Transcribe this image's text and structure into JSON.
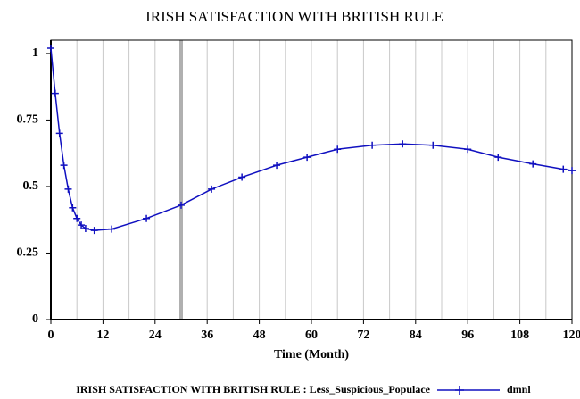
{
  "chart_data": {
    "type": "line",
    "title": "IRISH SATISFACTION WITH BRITISH RULE",
    "x_label": "Time (Month)",
    "x": [
      0,
      1,
      2,
      3,
      4,
      5,
      6,
      7,
      8,
      10,
      14,
      22,
      30,
      37,
      44,
      52,
      59,
      66,
      74,
      81,
      88,
      96,
      103,
      111,
      118,
      120
    ],
    "series": [
      {
        "name": "IRISH SATISFACTION WITH BRITISH RULE : Less_Suspicious_Populace",
        "unit": "dmnl",
        "color": "#1010c0",
        "values": [
          1.02,
          0.85,
          0.7,
          0.58,
          0.49,
          0.42,
          0.38,
          0.355,
          0.342,
          0.335,
          0.34,
          0.38,
          0.43,
          0.49,
          0.535,
          0.58,
          0.61,
          0.64,
          0.655,
          0.66,
          0.655,
          0.64,
          0.61,
          0.585,
          0.565,
          0.56
        ]
      }
    ],
    "xlim": [
      0,
      120
    ],
    "xticks": [
      0,
      12,
      24,
      36,
      48,
      60,
      72,
      84,
      96,
      108,
      120
    ],
    "xgrid": [
      6,
      12,
      18,
      24,
      30,
      36,
      42,
      48,
      54,
      60,
      66,
      72,
      78,
      84,
      90,
      96,
      102,
      108,
      114
    ],
    "cursor_x": 30,
    "ylim": [
      0,
      1.05
    ],
    "yticks": [
      0,
      0.25,
      0.5,
      0.75,
      1
    ]
  }
}
